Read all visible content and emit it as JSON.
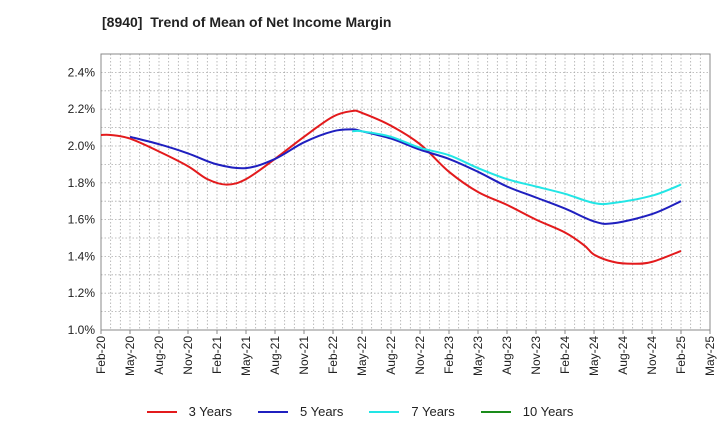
{
  "chart_data": {
    "type": "line",
    "title": "[8940]  Trend of Mean of Net Income Margin",
    "xlabel": "",
    "ylabel": "",
    "x_ticks": [
      "Feb-20",
      "May-20",
      "Aug-20",
      "Nov-20",
      "Feb-21",
      "May-21",
      "Aug-21",
      "Nov-21",
      "Feb-22",
      "May-22",
      "Aug-22",
      "Nov-22",
      "Feb-23",
      "May-23",
      "Aug-23",
      "Nov-23",
      "Feb-24",
      "May-24",
      "Aug-24",
      "Nov-24",
      "Feb-25",
      "May-25"
    ],
    "y_ticks": [
      "1.0%",
      "1.2%",
      "1.4%",
      "1.6%",
      "1.8%",
      "2.0%",
      "2.2%",
      "2.4%"
    ],
    "ylim": [
      1.0,
      2.5
    ],
    "y_unit": "%",
    "grid": true,
    "legend_position": "bottom",
    "series": [
      {
        "name": "3 Years",
        "color": "#e31a1c",
        "x": [
          "Feb-20",
          "Mar-20",
          "May-20",
          "Aug-20",
          "Nov-20",
          "Jan-21",
          "Mar-21",
          "May-21",
          "Aug-21",
          "Nov-21",
          "Feb-22",
          "Apr-22",
          "May-22",
          "Aug-22",
          "Nov-22",
          "Feb-23",
          "May-23",
          "Aug-23",
          "Nov-23",
          "Feb-24",
          "Apr-24",
          "May-24",
          "Jul-24",
          "Sep-24",
          "Nov-24",
          "Feb-25"
        ],
        "values": [
          2.06,
          2.06,
          2.04,
          1.97,
          1.89,
          1.82,
          1.79,
          1.82,
          1.93,
          2.05,
          2.16,
          2.19,
          2.18,
          2.11,
          2.01,
          1.86,
          1.75,
          1.68,
          1.6,
          1.53,
          1.46,
          1.41,
          1.37,
          1.36,
          1.37,
          1.43
        ]
      },
      {
        "name": "5 Years",
        "color": "#1f1fbf",
        "x": [
          "May-20",
          "Aug-20",
          "Nov-20",
          "Feb-21",
          "May-21",
          "Aug-21",
          "Nov-21",
          "Feb-22",
          "Apr-22",
          "May-22",
          "Aug-22",
          "Nov-22",
          "Feb-23",
          "May-23",
          "Aug-23",
          "Nov-23",
          "Feb-24",
          "May-24",
          "Jul-24",
          "Nov-24",
          "Feb-25"
        ],
        "values": [
          2.05,
          2.01,
          1.96,
          1.9,
          1.88,
          1.93,
          2.02,
          2.08,
          2.09,
          2.08,
          2.04,
          1.98,
          1.93,
          1.86,
          1.78,
          1.72,
          1.66,
          1.59,
          1.58,
          1.63,
          1.7
        ]
      },
      {
        "name": "7 Years",
        "color": "#22e5e5",
        "x": [
          "Apr-22",
          "May-22",
          "Aug-22",
          "Nov-22",
          "Feb-23",
          "May-23",
          "Aug-23",
          "Nov-23",
          "Feb-24",
          "May-24",
          "Jul-24",
          "Nov-24",
          "Feb-25"
        ],
        "values": [
          2.08,
          2.08,
          2.05,
          1.99,
          1.95,
          1.88,
          1.82,
          1.78,
          1.74,
          1.69,
          1.69,
          1.73,
          1.79
        ]
      },
      {
        "name": "10 Years",
        "color": "#1a8c1a",
        "x": [],
        "values": []
      }
    ]
  }
}
